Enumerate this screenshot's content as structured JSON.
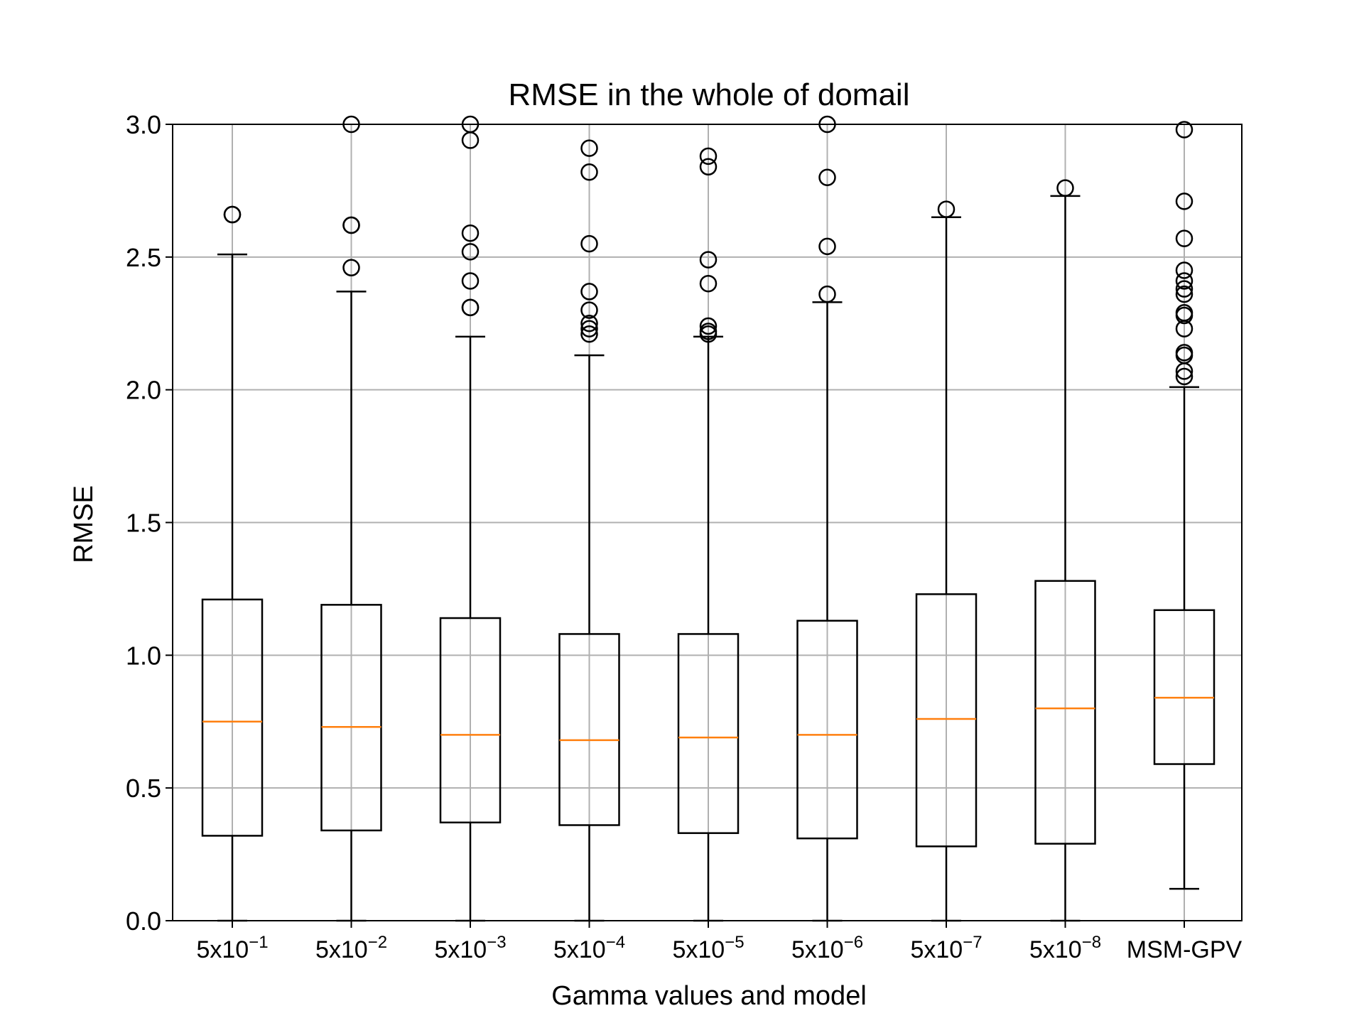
{
  "chart_data": {
    "type": "box",
    "title": "RMSE in the whole of domail",
    "xlabel": "Gamma values and model",
    "ylabel": "RMSE",
    "ylim": [
      0,
      3.0
    ],
    "yticks": [
      "0.0",
      "0.5",
      "1.0",
      "1.5",
      "2.0",
      "2.5",
      "3.0"
    ],
    "grid": true,
    "categories": [
      {
        "base": "5x10",
        "exp": "−1"
      },
      {
        "base": "5x10",
        "exp": "−2"
      },
      {
        "base": "5x10",
        "exp": "−3"
      },
      {
        "base": "5x10",
        "exp": "−4"
      },
      {
        "base": "5x10",
        "exp": "−5"
      },
      {
        "base": "5x10",
        "exp": "−6"
      },
      {
        "base": "5x10",
        "exp": "−7"
      },
      {
        "base": "5x10",
        "exp": "−8"
      },
      {
        "base": "MSM-GPV",
        "exp": ""
      }
    ],
    "boxes": [
      {
        "whislo": 0.0,
        "q1": 0.32,
        "median": 0.75,
        "q3": 1.21,
        "whishi": 2.51,
        "fliers": [
          2.66,
          2.66
        ]
      },
      {
        "whislo": 0.0,
        "q1": 0.34,
        "median": 0.73,
        "q3": 1.19,
        "whishi": 2.37,
        "fliers": [
          2.46,
          2.62,
          2.62,
          3.0
        ]
      },
      {
        "whislo": 0.0,
        "q1": 0.37,
        "median": 0.7,
        "q3": 1.14,
        "whishi": 2.2,
        "fliers": [
          2.31,
          2.31,
          2.41,
          2.52,
          2.59,
          2.94,
          3.0
        ]
      },
      {
        "whislo": 0.0,
        "q1": 0.36,
        "median": 0.68,
        "q3": 1.08,
        "whishi": 2.13,
        "fliers": [
          2.21,
          2.23,
          2.25,
          2.3,
          2.37,
          2.55,
          2.82,
          2.91
        ]
      },
      {
        "whislo": 0.0,
        "q1": 0.33,
        "median": 0.69,
        "q3": 1.08,
        "whishi": 2.2,
        "fliers": [
          2.21,
          2.22,
          2.24,
          2.4,
          2.49,
          2.84,
          2.88
        ]
      },
      {
        "whislo": 0.0,
        "q1": 0.31,
        "median": 0.7,
        "q3": 1.13,
        "whishi": 2.33,
        "fliers": [
          2.36,
          2.54,
          2.8,
          3.0
        ]
      },
      {
        "whislo": 0.0,
        "q1": 0.28,
        "median": 0.76,
        "q3": 1.23,
        "whishi": 2.65,
        "fliers": [
          2.68
        ]
      },
      {
        "whislo": 0.0,
        "q1": 0.29,
        "median": 0.8,
        "q3": 1.28,
        "whishi": 2.73,
        "fliers": [
          2.76
        ]
      },
      {
        "whislo": 0.12,
        "q1": 0.59,
        "median": 0.84,
        "q3": 1.17,
        "whishi": 2.01,
        "fliers": [
          2.05,
          2.07,
          2.13,
          2.14,
          2.23,
          2.28,
          2.29,
          2.36,
          2.38,
          2.41,
          2.45,
          2.57,
          2.71,
          2.98
        ]
      }
    ],
    "colors": {
      "box": "#000000",
      "median": "#ff7f0e",
      "grid": "#b0b0b0",
      "flier": "#000000"
    }
  }
}
